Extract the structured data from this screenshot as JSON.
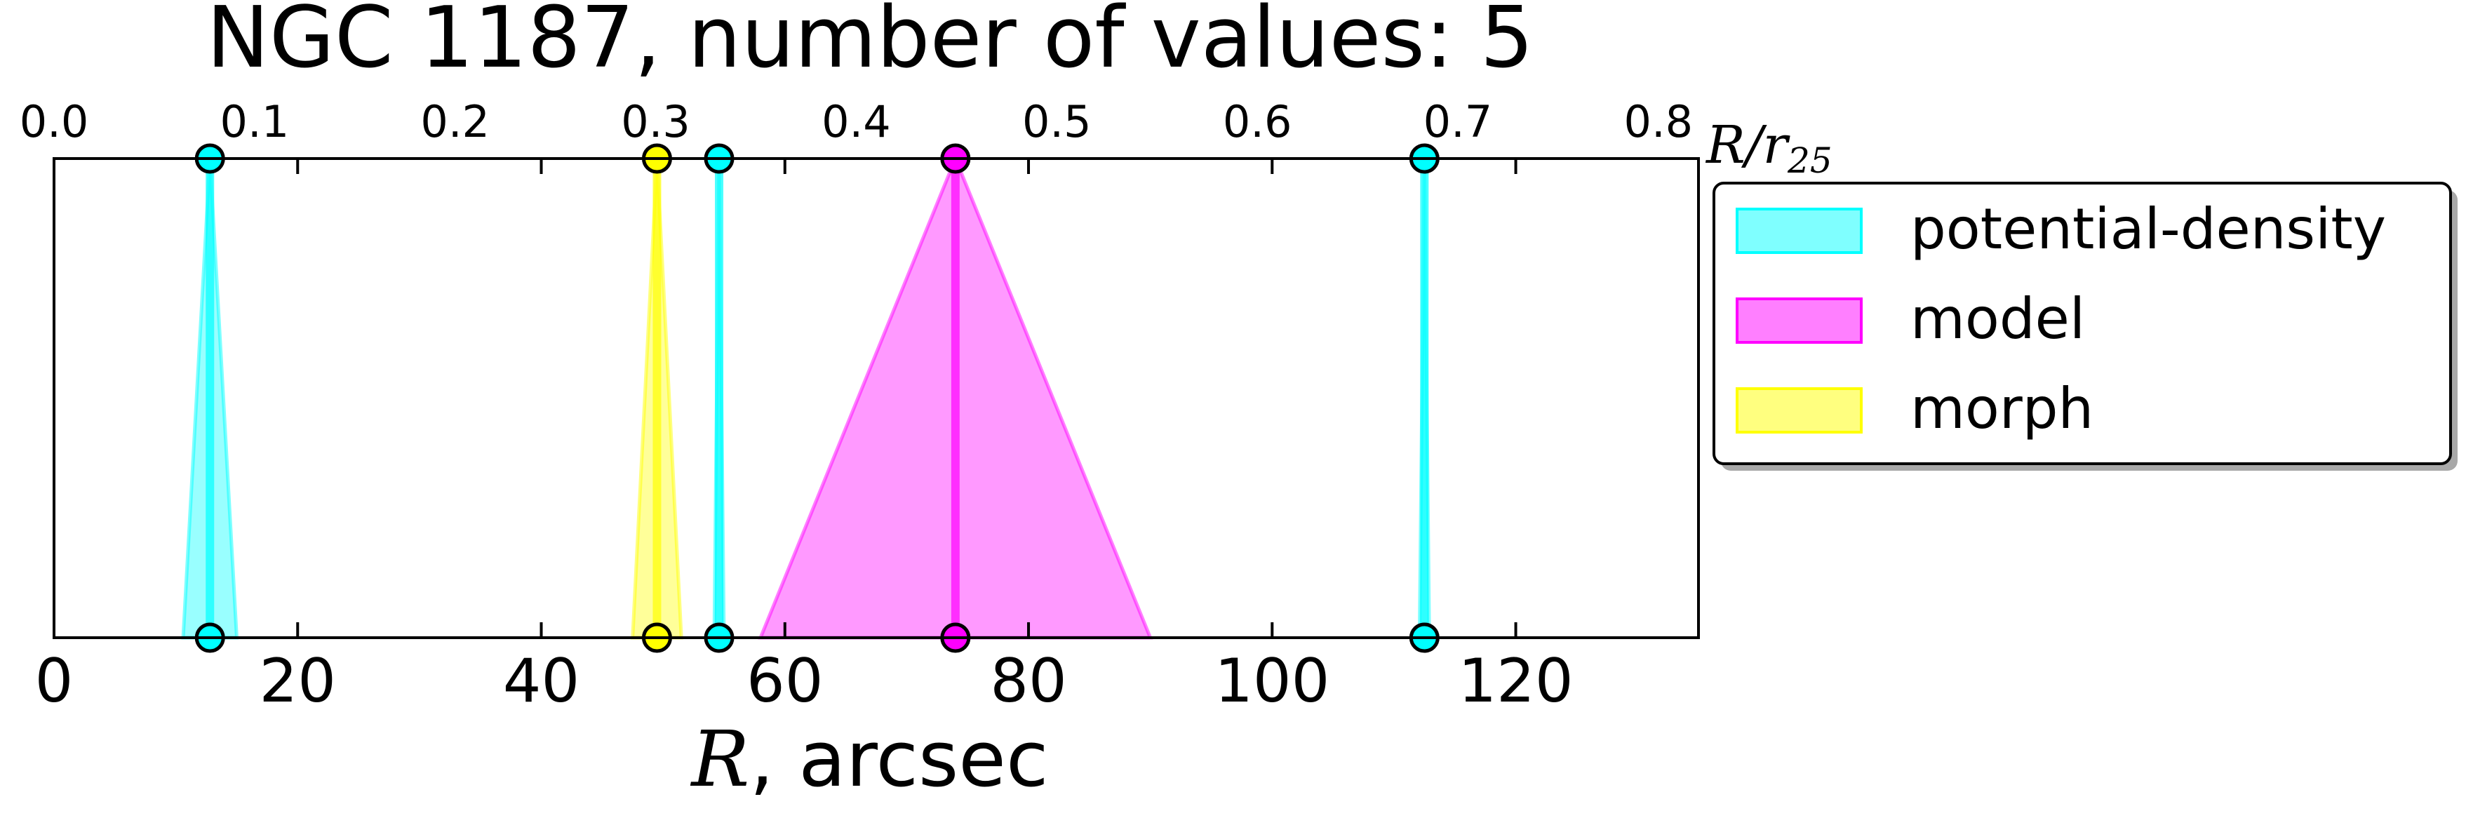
{
  "chart_data": {
    "type": "scatter",
    "title": "NGC 1187, number of values: 5",
    "xlabel_math": "R",
    "xlabel_rest": ", arcsec",
    "top_xlabel_math": "R/r",
    "top_xlabel_sub": "25",
    "xlim": [
      0,
      135
    ],
    "x_ticks": [
      0,
      20,
      40,
      60,
      80,
      100,
      120
    ],
    "x_tick_labels": [
      "0",
      "20",
      "40",
      "60",
      "80",
      "100",
      "120"
    ],
    "top_xlim": [
      0,
      0.82
    ],
    "top_ticks": [
      0.0,
      0.1,
      0.2,
      0.3,
      0.4,
      0.5,
      0.6,
      0.7,
      0.8
    ],
    "top_tick_labels": [
      "0.0",
      "0.1",
      "0.2",
      "0.3",
      "0.4",
      "0.5",
      "0.6",
      "0.7",
      "0.8"
    ],
    "grid": false,
    "legend_position": "outside-right",
    "legend": [
      {
        "label": "potential-density",
        "color": "#00ffff"
      },
      {
        "label": "model",
        "color": "#ff00ff"
      },
      {
        "label": "morph",
        "color": "#ffff00"
      }
    ],
    "series": [
      {
        "name": "potential-density",
        "color": "#00ffff",
        "markers": [
          {
            "x": 12.8,
            "err": 2.2
          },
          {
            "x": 54.6,
            "err": 0.4
          },
          {
            "x": 112.5,
            "err": 0.4
          }
        ]
      },
      {
        "name": "model",
        "color": "#ff00ff",
        "markers": [
          {
            "x": 74.0,
            "err": 16.0
          }
        ]
      },
      {
        "name": "morph",
        "color": "#ffff00",
        "markers": [
          {
            "x": 49.5,
            "err": 2.0
          }
        ]
      }
    ]
  }
}
